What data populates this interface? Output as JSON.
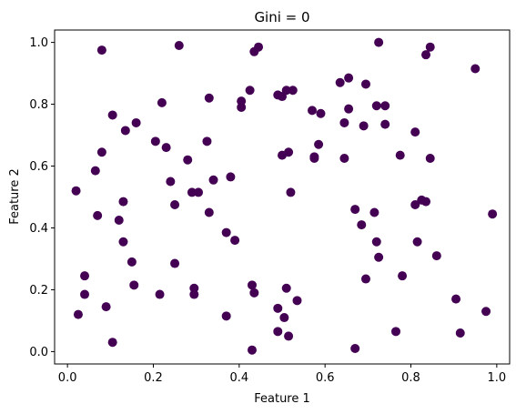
{
  "chart_data": {
    "type": "scatter",
    "title": "Gini = 0",
    "xlabel": "Feature 1",
    "ylabel": "Feature 2",
    "xlim": [
      -0.03,
      1.03
    ],
    "ylim": [
      -0.04,
      1.04
    ],
    "xticks": [
      "0.0",
      "0.2",
      "0.4",
      "0.6",
      "0.8",
      "1.0"
    ],
    "xtick_values": [
      0.0,
      0.2,
      0.4,
      0.6,
      0.8,
      1.0
    ],
    "yticks": [
      "0.0",
      "0.2",
      "0.4",
      "0.6",
      "0.8",
      "1.0"
    ],
    "ytick_values": [
      0.0,
      0.2,
      0.4,
      0.6,
      0.8,
      1.0
    ],
    "grid": false,
    "marker_color": "#440154",
    "points": [
      {
        "x": 0.02,
        "y": 0.52
      },
      {
        "x": 0.025,
        "y": 0.12
      },
      {
        "x": 0.04,
        "y": 0.245
      },
      {
        "x": 0.04,
        "y": 0.185
      },
      {
        "x": 0.065,
        "y": 0.585
      },
      {
        "x": 0.07,
        "y": 0.44
      },
      {
        "x": 0.08,
        "y": 0.975
      },
      {
        "x": 0.08,
        "y": 0.645
      },
      {
        "x": 0.09,
        "y": 0.145
      },
      {
        "x": 0.105,
        "y": 0.765
      },
      {
        "x": 0.105,
        "y": 0.03
      },
      {
        "x": 0.12,
        "y": 0.425
      },
      {
        "x": 0.13,
        "y": 0.485
      },
      {
        "x": 0.13,
        "y": 0.355
      },
      {
        "x": 0.135,
        "y": 0.715
      },
      {
        "x": 0.15,
        "y": 0.29
      },
      {
        "x": 0.155,
        "y": 0.215
      },
      {
        "x": 0.16,
        "y": 0.74
      },
      {
        "x": 0.205,
        "y": 0.68
      },
      {
        "x": 0.215,
        "y": 0.185
      },
      {
        "x": 0.22,
        "y": 0.805
      },
      {
        "x": 0.23,
        "y": 0.66
      },
      {
        "x": 0.24,
        "y": 0.55
      },
      {
        "x": 0.25,
        "y": 0.475
      },
      {
        "x": 0.25,
        "y": 0.285
      },
      {
        "x": 0.26,
        "y": 0.99
      },
      {
        "x": 0.28,
        "y": 0.62
      },
      {
        "x": 0.29,
        "y": 0.515
      },
      {
        "x": 0.295,
        "y": 0.205
      },
      {
        "x": 0.295,
        "y": 0.185
      },
      {
        "x": 0.305,
        "y": 0.515
      },
      {
        "x": 0.325,
        "y": 0.68
      },
      {
        "x": 0.33,
        "y": 0.82
      },
      {
        "x": 0.33,
        "y": 0.45
      },
      {
        "x": 0.34,
        "y": 0.555
      },
      {
        "x": 0.37,
        "y": 0.385
      },
      {
        "x": 0.37,
        "y": 0.115
      },
      {
        "x": 0.38,
        "y": 0.565
      },
      {
        "x": 0.39,
        "y": 0.36
      },
      {
        "x": 0.405,
        "y": 0.81
      },
      {
        "x": 0.405,
        "y": 0.79
      },
      {
        "x": 0.425,
        "y": 0.845
      },
      {
        "x": 0.43,
        "y": 0.215
      },
      {
        "x": 0.43,
        "y": 0.005
      },
      {
        "x": 0.435,
        "y": 0.97
      },
      {
        "x": 0.435,
        "y": 0.19
      },
      {
        "x": 0.445,
        "y": 0.985
      },
      {
        "x": 0.49,
        "y": 0.83
      },
      {
        "x": 0.49,
        "y": 0.14
      },
      {
        "x": 0.49,
        "y": 0.065
      },
      {
        "x": 0.5,
        "y": 0.825
      },
      {
        "x": 0.5,
        "y": 0.635
      },
      {
        "x": 0.505,
        "y": 0.11
      },
      {
        "x": 0.51,
        "y": 0.205
      },
      {
        "x": 0.51,
        "y": 0.845
      },
      {
        "x": 0.515,
        "y": 0.645
      },
      {
        "x": 0.515,
        "y": 0.05
      },
      {
        "x": 0.52,
        "y": 0.515
      },
      {
        "x": 0.525,
        "y": 0.845
      },
      {
        "x": 0.535,
        "y": 0.165
      },
      {
        "x": 0.57,
        "y": 0.78
      },
      {
        "x": 0.575,
        "y": 0.63
      },
      {
        "x": 0.575,
        "y": 0.625
      },
      {
        "x": 0.585,
        "y": 0.67
      },
      {
        "x": 0.59,
        "y": 0.77
      },
      {
        "x": 0.635,
        "y": 0.87
      },
      {
        "x": 0.645,
        "y": 0.74
      },
      {
        "x": 0.645,
        "y": 0.625
      },
      {
        "x": 0.655,
        "y": 0.785
      },
      {
        "x": 0.655,
        "y": 0.885
      },
      {
        "x": 0.67,
        "y": 0.46
      },
      {
        "x": 0.67,
        "y": 0.01
      },
      {
        "x": 0.685,
        "y": 0.41
      },
      {
        "x": 0.69,
        "y": 0.73
      },
      {
        "x": 0.695,
        "y": 0.865
      },
      {
        "x": 0.695,
        "y": 0.235
      },
      {
        "x": 0.715,
        "y": 0.45
      },
      {
        "x": 0.72,
        "y": 0.795
      },
      {
        "x": 0.72,
        "y": 0.355
      },
      {
        "x": 0.725,
        "y": 0.305
      },
      {
        "x": 0.725,
        "y": 1.0
      },
      {
        "x": 0.74,
        "y": 0.795
      },
      {
        "x": 0.74,
        "y": 0.735
      },
      {
        "x": 0.765,
        "y": 0.065
      },
      {
        "x": 0.775,
        "y": 0.635
      },
      {
        "x": 0.78,
        "y": 0.245
      },
      {
        "x": 0.81,
        "y": 0.71
      },
      {
        "x": 0.81,
        "y": 0.475
      },
      {
        "x": 0.815,
        "y": 0.355
      },
      {
        "x": 0.825,
        "y": 0.49
      },
      {
        "x": 0.835,
        "y": 0.485
      },
      {
        "x": 0.835,
        "y": 0.96
      },
      {
        "x": 0.845,
        "y": 0.985
      },
      {
        "x": 0.845,
        "y": 0.625
      },
      {
        "x": 0.86,
        "y": 0.31
      },
      {
        "x": 0.905,
        "y": 0.17
      },
      {
        "x": 0.915,
        "y": 0.06
      },
      {
        "x": 0.95,
        "y": 0.915
      },
      {
        "x": 0.975,
        "y": 0.13
      },
      {
        "x": 0.99,
        "y": 0.445
      }
    ]
  }
}
